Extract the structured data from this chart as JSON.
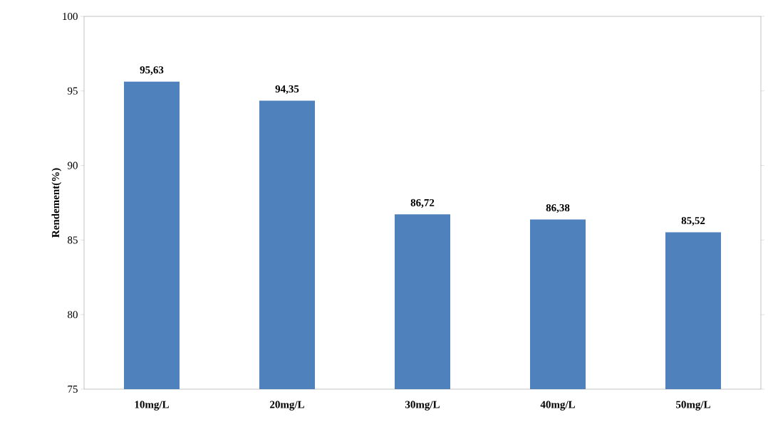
{
  "chart_data": {
    "type": "bar",
    "ylabel": "Rendement(%)",
    "categories": [
      "10mg/L",
      "20mg/L",
      "30mg/L",
      "40mg/L",
      "50mg/L"
    ],
    "values": [
      95.63,
      94.35,
      86.72,
      86.38,
      85.52
    ],
    "value_labels": [
      "95,63",
      "94,35",
      "86,72",
      "86,38",
      "85,52"
    ],
    "color": "#4f81bd",
    "ylim": [
      75,
      100
    ],
    "yticks": [
      75,
      80,
      85,
      90,
      95,
      100
    ]
  }
}
